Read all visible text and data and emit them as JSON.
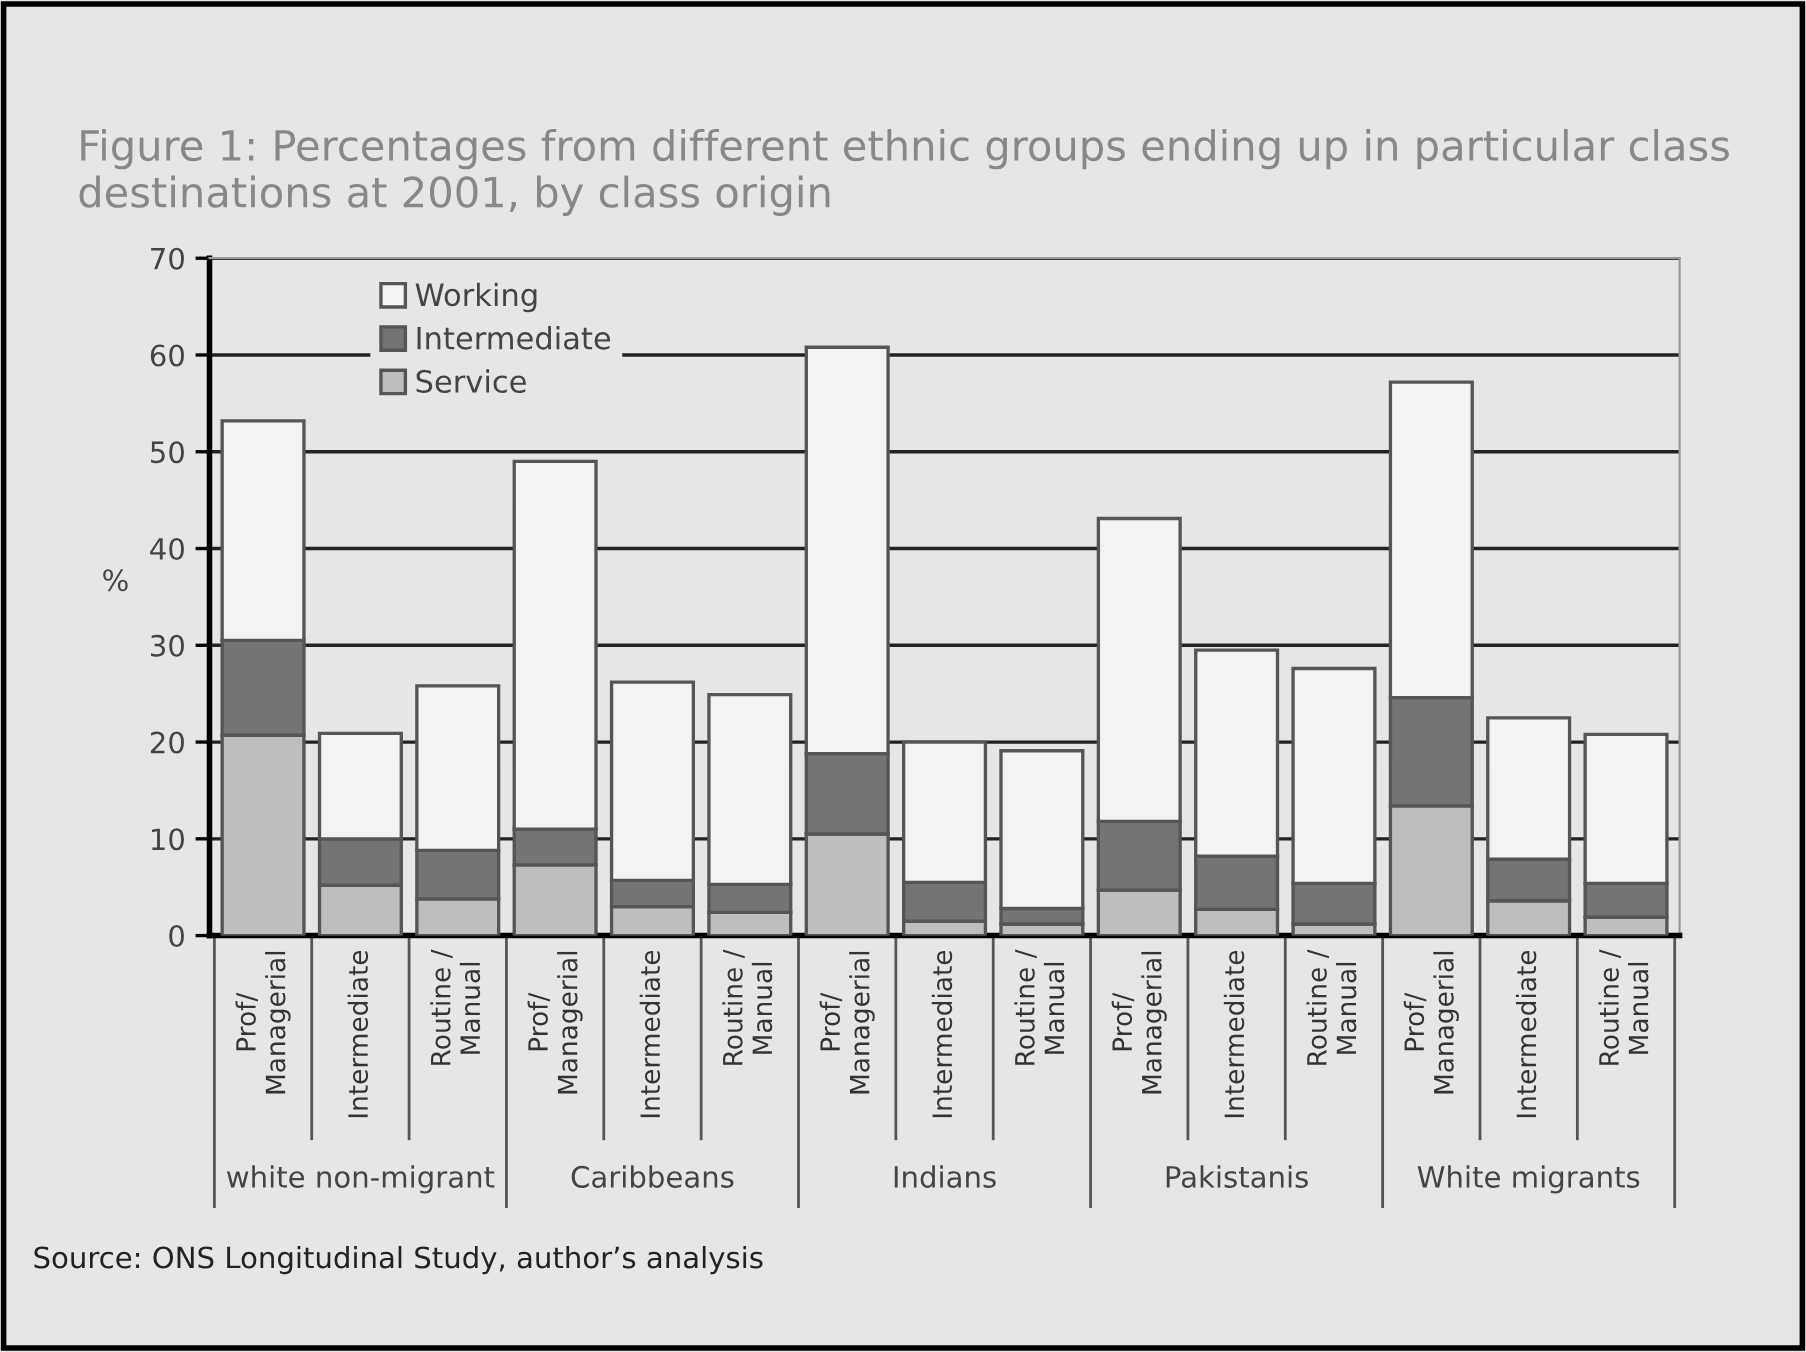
{
  "chart_data": {
    "type": "bar",
    "stacked": true,
    "title": "Figure 1: Percentages from different ethnic groups ending up in particular class destinations at 2001, by class origin",
    "ylabel": "%",
    "categories": [
      "Prof/\nManagerial",
      "Intermediate",
      "Routine /\nManual",
      "Prof/\nManagerial",
      "Intermediate",
      "Routine /\nManual",
      "Prof/\nManagerial",
      "Intermediate",
      "Routine /\nManual",
      "Prof/\nManagerial",
      "Intermediate",
      "Routine /\nManual",
      "Prof/\nManagerial",
      "Intermediate",
      "Routine /\nManual"
    ],
    "series": [
      {
        "name": "Service",
        "color": "#bdbec0",
        "values": [
          20.7,
          5.2,
          3.8,
          7.3,
          3.0,
          2.4,
          10.5,
          1.5,
          1.2,
          4.7,
          2.7,
          1.2,
          13.4,
          3.6,
          1.9
        ]
      },
      {
        "name": "Intermediate",
        "color": "#737475",
        "values": [
          9.8,
          4.8,
          5.0,
          3.7,
          2.7,
          2.9,
          8.3,
          4.0,
          1.6,
          7.1,
          5.5,
          4.2,
          11.2,
          4.3,
          3.5
        ]
      },
      {
        "name": "Working",
        "color": "#f2f4f3",
        "values": [
          22.7,
          10.9,
          17.0,
          38.0,
          20.5,
          19.6,
          42.0,
          14.5,
          16.3,
          31.3,
          21.3,
          22.2,
          32.6,
          14.6,
          15.4
        ]
      }
    ],
    "ylim": [
      0,
      70
    ],
    "yticks": [
      0,
      10,
      20,
      30,
      40,
      50,
      60,
      70
    ],
    "grid": "y",
    "legend": "top left",
    "annotations": [
      "white non-migrant",
      "Caribbeans",
      "Indians",
      "Pakistanis",
      "White migrants",
      "Source: ONS Longitudinal Study, author’s analysis"
    ]
  }
}
